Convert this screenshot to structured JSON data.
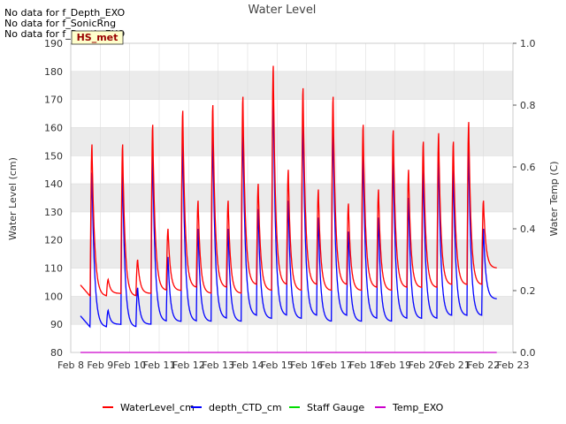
{
  "no_data_messages": [
    "No data for f_Depth_EXO",
    "No data for f_SonicRng",
    "No data for f_Depth_EXO"
  ],
  "colors": {
    "water_level": "#ff0000",
    "depth_ctd": "#0000ff",
    "staff_gauge": "#00dd00",
    "temp_exo": "#cc00cc",
    "band": "#ebebeb",
    "badge_bg": "#ffffcc",
    "badge_text": "#990000"
  },
  "chart_data": {
    "type": "line",
    "title": "Water Level",
    "ylabel": "Water Level (cm)",
    "y2label": "Water Temp (C)",
    "ylim": [
      80,
      190
    ],
    "y2lim": [
      0.0,
      1.0
    ],
    "yticks": [
      80,
      90,
      100,
      110,
      120,
      130,
      140,
      150,
      160,
      170,
      180,
      190
    ],
    "y2ticks": [
      "0.0",
      "0.2",
      "0.4",
      "0.6",
      "0.8",
      "1.0"
    ],
    "xlim": [
      0,
      15
    ],
    "xticks": [
      "Feb 8",
      "Feb 9",
      "Feb 10",
      "Feb 11",
      "Feb 12",
      "Feb 13",
      "Feb 14",
      "Feb 15",
      "Feb 16",
      "Feb 17",
      "Feb 18",
      "Feb 19",
      "Feb 20",
      "Feb 21",
      "Feb 22",
      "Feb 23"
    ],
    "annotation": "HS_met",
    "legend": [
      "WaterLevel_cm",
      "depth_CTD_cm",
      "Staff Gauge",
      "Temp_EXO"
    ],
    "series_start": 0.33,
    "series_end": 14.45,
    "temp_exo_value": 0.0,
    "wl_peaks": [
      {
        "x": 0.72,
        "peak": 154,
        "trough": 100
      },
      {
        "x": 1.27,
        "peak": 106,
        "trough": 101
      },
      {
        "x": 1.76,
        "peak": 154,
        "trough": 100
      },
      {
        "x": 2.27,
        "peak": 113,
        "trough": 101
      },
      {
        "x": 2.78,
        "peak": 161,
        "trough": 102
      },
      {
        "x": 3.3,
        "peak": 124,
        "trough": 102
      },
      {
        "x": 3.8,
        "peak": 166,
        "trough": 103
      },
      {
        "x": 4.32,
        "peak": 134,
        "trough": 101
      },
      {
        "x": 4.82,
        "peak": 168,
        "trough": 103
      },
      {
        "x": 5.34,
        "peak": 134,
        "trough": 101
      },
      {
        "x": 5.84,
        "peak": 171,
        "trough": 104
      },
      {
        "x": 6.36,
        "peak": 140,
        "trough": 102
      },
      {
        "x": 6.87,
        "peak": 182,
        "trough": 104
      },
      {
        "x": 7.38,
        "peak": 145,
        "trough": 102
      },
      {
        "x": 7.88,
        "peak": 174,
        "trough": 104
      },
      {
        "x": 8.4,
        "peak": 138,
        "trough": 102
      },
      {
        "x": 8.9,
        "peak": 171,
        "trough": 104
      },
      {
        "x": 9.42,
        "peak": 133,
        "trough": 102
      },
      {
        "x": 9.92,
        "peak": 161,
        "trough": 103
      },
      {
        "x": 10.44,
        "peak": 138,
        "trough": 102
      },
      {
        "x": 10.94,
        "peak": 159,
        "trough": 103
      },
      {
        "x": 11.46,
        "peak": 145,
        "trough": 103
      },
      {
        "x": 11.96,
        "peak": 155,
        "trough": 103
      },
      {
        "x": 12.48,
        "peak": 158,
        "trough": 104
      },
      {
        "x": 12.98,
        "peak": 155,
        "trough": 104
      },
      {
        "x": 13.5,
        "peak": 162,
        "trough": 104
      },
      {
        "x": 14.0,
        "peak": 134,
        "trough": 108
      }
    ],
    "ctd_peaks": [
      {
        "x": 0.72,
        "peak": 144,
        "trough": 89
      },
      {
        "x": 1.27,
        "peak": 95,
        "trough": 90
      },
      {
        "x": 1.76,
        "peak": 144,
        "trough": 89
      },
      {
        "x": 2.27,
        "peak": 103,
        "trough": 90
      },
      {
        "x": 2.78,
        "peak": 151,
        "trough": 91
      },
      {
        "x": 3.3,
        "peak": 114,
        "trough": 91
      },
      {
        "x": 3.8,
        "peak": 156,
        "trough": 91
      },
      {
        "x": 4.32,
        "peak": 124,
        "trough": 91
      },
      {
        "x": 4.82,
        "peak": 158,
        "trough": 92
      },
      {
        "x": 5.34,
        "peak": 124,
        "trough": 91
      },
      {
        "x": 5.84,
        "peak": 161,
        "trough": 93
      },
      {
        "x": 6.36,
        "peak": 131,
        "trough": 92
      },
      {
        "x": 6.87,
        "peak": 172,
        "trough": 93
      },
      {
        "x": 7.38,
        "peak": 134,
        "trough": 92
      },
      {
        "x": 7.88,
        "peak": 164,
        "trough": 93
      },
      {
        "x": 8.4,
        "peak": 128,
        "trough": 91
      },
      {
        "x": 8.9,
        "peak": 161,
        "trough": 93
      },
      {
        "x": 9.42,
        "peak": 123,
        "trough": 91
      },
      {
        "x": 9.92,
        "peak": 151,
        "trough": 92
      },
      {
        "x": 10.44,
        "peak": 128,
        "trough": 91
      },
      {
        "x": 10.94,
        "peak": 149,
        "trough": 92
      },
      {
        "x": 11.46,
        "peak": 135,
        "trough": 92
      },
      {
        "x": 11.96,
        "peak": 145,
        "trough": 92
      },
      {
        "x": 12.48,
        "peak": 149,
        "trough": 93
      },
      {
        "x": 12.98,
        "peak": 145,
        "trough": 93
      },
      {
        "x": 13.5,
        "peak": 152,
        "trough": 93
      },
      {
        "x": 14.0,
        "peak": 124,
        "trough": 96
      }
    ]
  }
}
